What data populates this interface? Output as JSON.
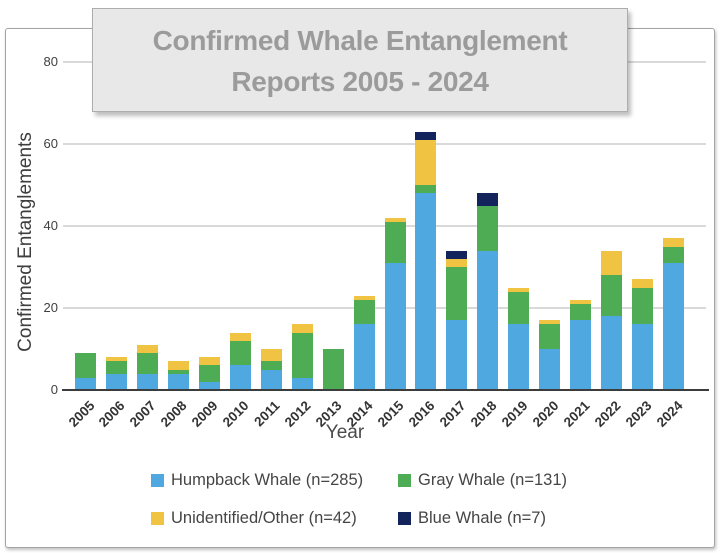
{
  "title": {
    "text": "Confirmed Whale Entanglement Reports 2005 - 2024",
    "line1": "Confirmed Whale Entanglement",
    "line2": "Reports 2005 - 2024"
  },
  "y_axis": {
    "label": "Confirmed Entanglements",
    "ticks": [
      0,
      20,
      40,
      60,
      80
    ]
  },
  "x_axis": {
    "label": "Year"
  },
  "legend": [
    {
      "label": "Humpback Whale (n=285)",
      "color": "#4FA8DF"
    },
    {
      "label": "Gray Whale (n=131)",
      "color": "#4EAC55"
    },
    {
      "label": "Unidentified/Other (n=42)",
      "color": "#F0C342"
    },
    {
      "label": "Blue Whale (n=7)",
      "color": "#13235B"
    }
  ],
  "chart_data": {
    "type": "bar",
    "stacked": true,
    "title": "Confirmed Whale Entanglement Reports 2005 - 2024",
    "xlabel": "Year",
    "ylabel": "Confirmed Entanglements",
    "ylim": [
      0,
      85
    ],
    "y_ticks": [
      0,
      20,
      40,
      60,
      80
    ],
    "grid": true,
    "legend_position": "bottom",
    "categories": [
      "2005",
      "2006",
      "2007",
      "2008",
      "2009",
      "2010",
      "2011",
      "2012",
      "2013",
      "2014",
      "2015",
      "2016",
      "2017",
      "2018",
      "2019",
      "2020",
      "2021",
      "2022",
      "2023",
      "2024"
    ],
    "series": [
      {
        "name": "Humpback Whale",
        "n": 285,
        "color": "#4FA8DF",
        "values": [
          3,
          4,
          4,
          4,
          2,
          6,
          5,
          3,
          0,
          16,
          31,
          48,
          17,
          34,
          16,
          10,
          17,
          18,
          16,
          31
        ]
      },
      {
        "name": "Gray Whale",
        "n": 131,
        "color": "#4EAC55",
        "values": [
          6,
          3,
          5,
          1,
          4,
          6,
          2,
          11,
          10,
          6,
          10,
          2,
          13,
          11,
          8,
          6,
          4,
          10,
          9,
          4
        ]
      },
      {
        "name": "Unidentified/Other",
        "n": 42,
        "color": "#F0C342",
        "values": [
          0,
          1,
          2,
          2,
          2,
          2,
          3,
          2,
          0,
          1,
          1,
          11,
          2,
          0,
          1,
          1,
          1,
          6,
          2,
          2
        ]
      },
      {
        "name": "Blue Whale",
        "n": 7,
        "color": "#13235B",
        "values": [
          0,
          0,
          0,
          0,
          0,
          0,
          0,
          0,
          0,
          0,
          0,
          2,
          2,
          3,
          0,
          0,
          0,
          0,
          0,
          0
        ]
      }
    ]
  }
}
